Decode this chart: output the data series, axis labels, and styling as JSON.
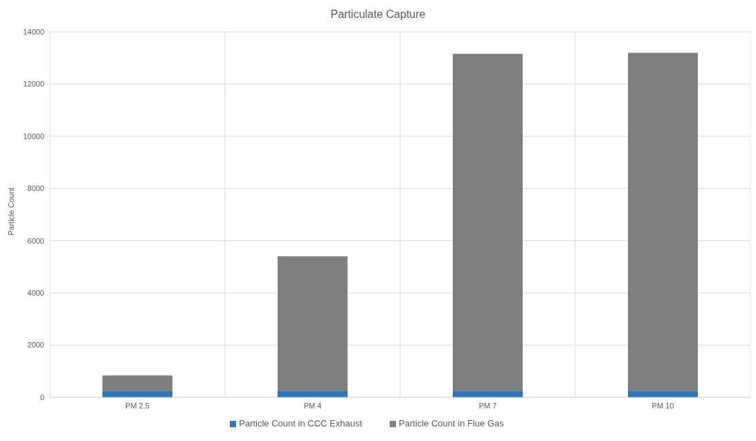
{
  "chart_data": {
    "type": "bar",
    "title": "Particulate Capture",
    "ylabel": "Particle Count",
    "categories": [
      "PM 2.5",
      "PM 4",
      "PM 7",
      "PM 10"
    ],
    "stacked": true,
    "series": [
      {
        "name": "Particle Count in CCC Exhaust",
        "color": "#2e75b6",
        "values": [
          260,
          260,
          260,
          260
        ]
      },
      {
        "name": "Particle Count in Flue Gas",
        "color": "#7f7f7f",
        "values": [
          580,
          5140,
          12900,
          12940
        ]
      }
    ],
    "ylim": [
      0,
      14000
    ],
    "yticks": [
      0,
      2000,
      4000,
      6000,
      8000,
      10000,
      12000,
      14000
    ],
    "grid": true,
    "legend": "bottom"
  }
}
